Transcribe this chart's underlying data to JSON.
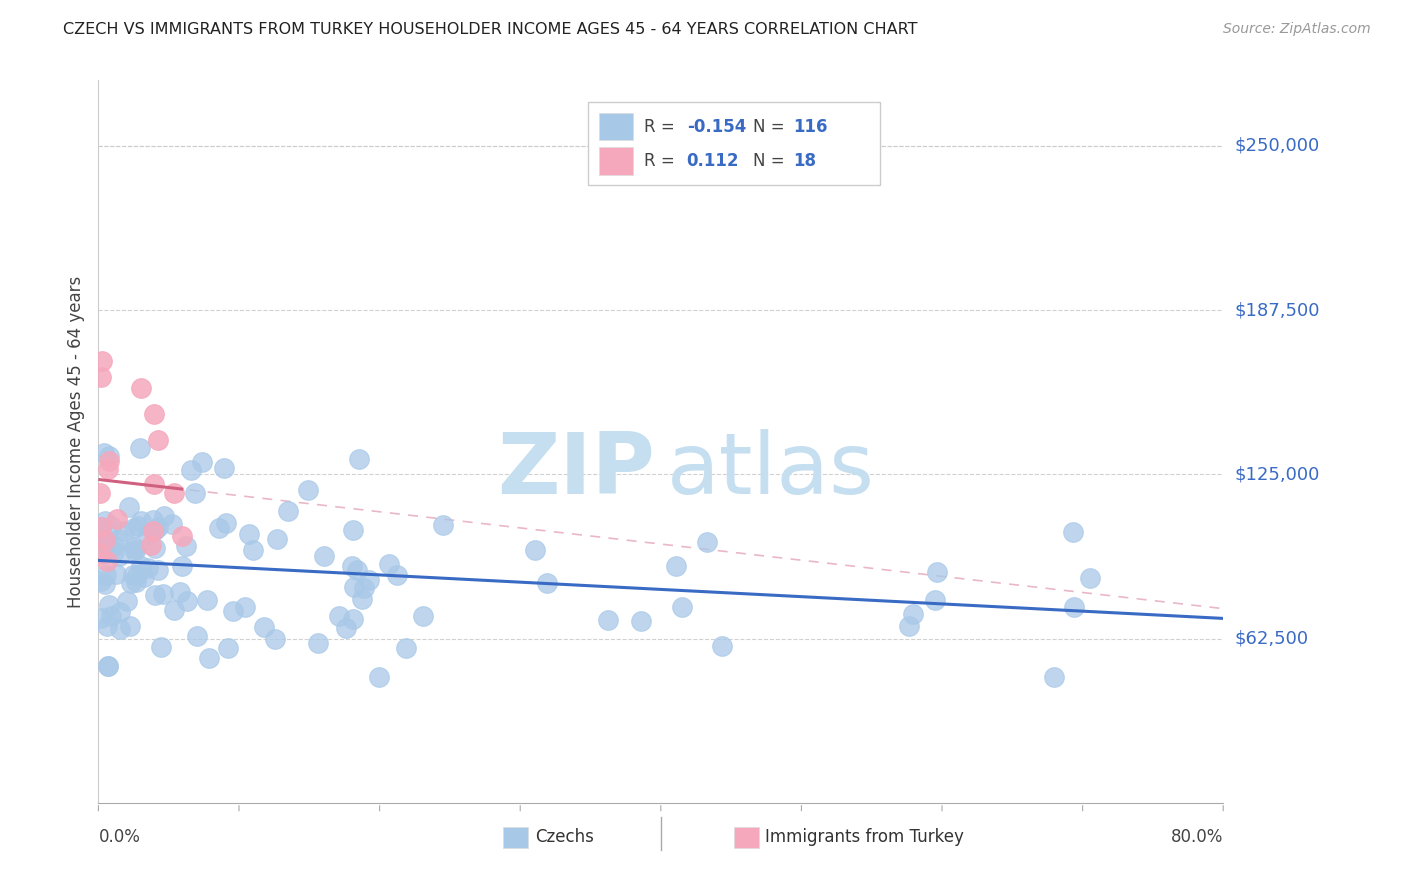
{
  "title": "CZECH VS IMMIGRANTS FROM TURKEY HOUSEHOLDER INCOME AGES 45 - 64 YEARS CORRELATION CHART",
  "source": "Source: ZipAtlas.com",
  "ylabel": "Householder Income Ages 45 - 64 years",
  "y_tick_vals": [
    62500,
    125000,
    187500,
    250000
  ],
  "y_tick_labels": [
    "$62,500",
    "$125,000",
    "$187,500",
    "$250,000"
  ],
  "watermark_zip": "ZIP",
  "watermark_atlas": "atlas",
  "legend_czech_R": "-0.154",
  "legend_czech_N": "116",
  "legend_turkey_R": "0.112",
  "legend_turkey_N": "18",
  "background_color": "#ffffff",
  "czech_scatter_color": "#a8c8e8",
  "turkey_scatter_color": "#f5a8bc",
  "czech_line_color": "#3a6bc4",
  "turkey_line_color": "#d06080",
  "legend_R_color": "#3a6bc4",
  "legend_N_color": "#3a6bc4",
  "title_color": "#222222",
  "source_color": "#999999",
  "label_color": "#444444",
  "ytick_color": "#3a6bc4",
  "grid_color": "#cccccc",
  "xlim": [
    0.0,
    0.8
  ],
  "ylim": [
    0,
    275000
  ],
  "figsize": [
    14.06,
    8.92
  ],
  "dpi": 100
}
